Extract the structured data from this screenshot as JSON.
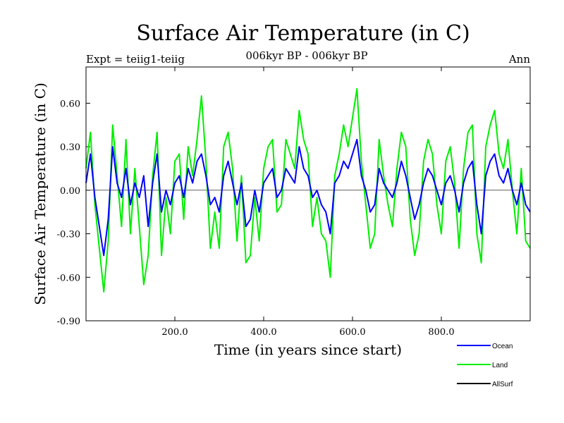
{
  "chart_data": {
    "type": "line",
    "title": "Surface Air Temperature (in C)",
    "subtitle_left": "Expt = teiig1-teiig",
    "subtitle_center": "006kyr BP - 006kyr BP",
    "subtitle_right": "Ann",
    "xlabel": "Time (in years since start)",
    "ylabel": "Surface Air Temperature (in C)",
    "xlim": [
      0,
      1000
    ],
    "ylim": [
      -0.9,
      0.85
    ],
    "x_ticks": [
      200,
      400,
      600,
      800
    ],
    "x_tick_labels": [
      "200.0",
      "400.0",
      "600.0",
      "800.0"
    ],
    "y_ticks": [
      -0.9,
      -0.6,
      -0.3,
      0.0,
      0.3,
      0.6
    ],
    "y_tick_labels": [
      "-0.90",
      "-0.60",
      "-0.30",
      "0.00",
      "0.30",
      "0.60"
    ],
    "zero_line": 0.0,
    "legend_position": "bottom-right",
    "series": [
      {
        "name": "Ocean",
        "color": "#0000ff",
        "x": [
          0,
          10,
          20,
          30,
          40,
          50,
          60,
          70,
          80,
          90,
          100,
          110,
          120,
          130,
          140,
          150,
          160,
          170,
          180,
          190,
          200,
          210,
          220,
          230,
          240,
          250,
          260,
          270,
          280,
          290,
          300,
          310,
          320,
          330,
          340,
          350,
          360,
          370,
          380,
          390,
          400,
          410,
          420,
          430,
          440,
          450,
          460,
          470,
          480,
          490,
          500,
          510,
          520,
          530,
          540,
          550,
          560,
          570,
          580,
          590,
          600,
          610,
          620,
          630,
          640,
          650,
          660,
          670,
          680,
          690,
          700,
          710,
          720,
          730,
          740,
          750,
          760,
          770,
          780,
          790,
          800,
          810,
          820,
          830,
          840,
          850,
          860,
          870,
          880,
          890,
          900,
          910,
          920,
          930,
          940,
          950,
          960,
          970,
          980,
          990,
          1000
        ],
        "values": [
          0.05,
          0.25,
          -0.05,
          -0.25,
          -0.45,
          -0.2,
          0.3,
          0.05,
          -0.05,
          0.15,
          -0.1,
          0.05,
          -0.05,
          0.1,
          -0.25,
          0.05,
          0.25,
          -0.15,
          0.0,
          -0.1,
          0.05,
          0.1,
          -0.05,
          0.15,
          0.05,
          0.2,
          0.25,
          0.1,
          -0.1,
          -0.05,
          -0.15,
          0.1,
          0.2,
          0.05,
          -0.1,
          0.05,
          -0.25,
          -0.2,
          0.0,
          -0.15,
          0.05,
          0.1,
          0.15,
          -0.05,
          0.0,
          0.15,
          0.1,
          0.05,
          0.3,
          0.15,
          0.1,
          -0.05,
          0.0,
          -0.1,
          -0.15,
          -0.3,
          0.05,
          0.1,
          0.2,
          0.15,
          0.25,
          0.35,
          0.1,
          0.0,
          -0.15,
          -0.1,
          0.15,
          0.05,
          0.0,
          -0.05,
          0.05,
          0.2,
          0.1,
          -0.05,
          -0.2,
          -0.1,
          0.05,
          0.15,
          0.1,
          0.0,
          -0.1,
          0.05,
          0.1,
          0.0,
          -0.15,
          0.05,
          0.15,
          0.2,
          -0.1,
          -0.3,
          0.1,
          0.2,
          0.25,
          0.1,
          0.05,
          0.15,
          0.0,
          -0.1,
          0.05,
          -0.1,
          -0.15
        ]
      },
      {
        "name": "Land",
        "color": "#00ee00",
        "x": [
          0,
          10,
          20,
          30,
          40,
          50,
          60,
          70,
          80,
          90,
          100,
          110,
          120,
          130,
          140,
          150,
          160,
          170,
          180,
          190,
          200,
          210,
          220,
          230,
          240,
          250,
          260,
          270,
          280,
          290,
          300,
          310,
          320,
          330,
          340,
          350,
          360,
          370,
          380,
          390,
          400,
          410,
          420,
          430,
          440,
          450,
          460,
          470,
          480,
          490,
          500,
          510,
          520,
          530,
          540,
          550,
          560,
          570,
          580,
          590,
          600,
          610,
          620,
          630,
          640,
          650,
          660,
          670,
          680,
          690,
          700,
          710,
          720,
          730,
          740,
          750,
          760,
          770,
          780,
          790,
          800,
          810,
          820,
          830,
          840,
          850,
          860,
          870,
          880,
          890,
          900,
          910,
          920,
          930,
          940,
          950,
          960,
          970,
          980,
          990,
          1000
        ],
        "values": [
          0.15,
          0.4,
          -0.1,
          -0.4,
          -0.7,
          -0.35,
          0.45,
          0.1,
          -0.25,
          0.35,
          -0.3,
          0.15,
          -0.25,
          -0.65,
          -0.45,
          0.1,
          0.4,
          -0.45,
          -0.05,
          -0.3,
          0.2,
          0.25,
          -0.2,
          0.3,
          0.1,
          0.35,
          0.65,
          0.2,
          -0.4,
          -0.15,
          -0.4,
          0.3,
          0.4,
          0.15,
          -0.35,
          0.1,
          -0.5,
          -0.45,
          -0.05,
          -0.35,
          0.15,
          0.3,
          0.35,
          -0.15,
          -0.1,
          0.35,
          0.25,
          0.15,
          0.55,
          0.35,
          0.25,
          -0.25,
          -0.05,
          -0.3,
          -0.35,
          -0.6,
          0.1,
          0.25,
          0.45,
          0.3,
          0.5,
          0.7,
          0.2,
          -0.1,
          -0.4,
          -0.3,
          0.35,
          0.1,
          -0.1,
          -0.25,
          0.15,
          0.4,
          0.3,
          -0.2,
          -0.45,
          -0.3,
          0.2,
          0.35,
          0.25,
          -0.1,
          -0.3,
          0.2,
          0.3,
          0.05,
          -0.4,
          0.15,
          0.4,
          0.45,
          -0.3,
          -0.5,
          0.3,
          0.45,
          0.55,
          0.25,
          0.15,
          0.35,
          0.0,
          -0.3,
          0.15,
          -0.35,
          -0.4
        ]
      },
      {
        "name": "AllSurf",
        "color": "#000000",
        "x": [],
        "values": []
      }
    ]
  }
}
